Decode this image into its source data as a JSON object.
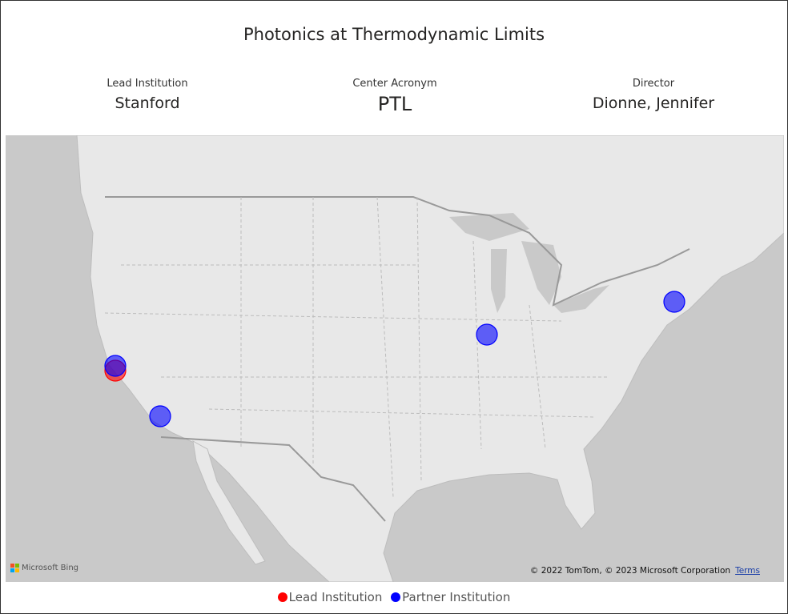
{
  "header": {
    "title": "Photonics at Thermodynamic Limits"
  },
  "cards": [
    {
      "label": "Lead Institution",
      "value": "Stanford"
    },
    {
      "label": "Center Acronym",
      "value": "PTL"
    },
    {
      "label": "Director",
      "value": "Dionne, Jennifer"
    }
  ],
  "map": {
    "logo": "Microsoft Bing",
    "attribution": "© 2022 TomTom, © 2023 Microsoft Corporation",
    "terms": "Terms"
  },
  "legend": {
    "items": [
      {
        "label": "Lead Institution",
        "color": "#ff0000"
      },
      {
        "label": "Partner Institution",
        "color": "#0000ff"
      }
    ]
  }
}
